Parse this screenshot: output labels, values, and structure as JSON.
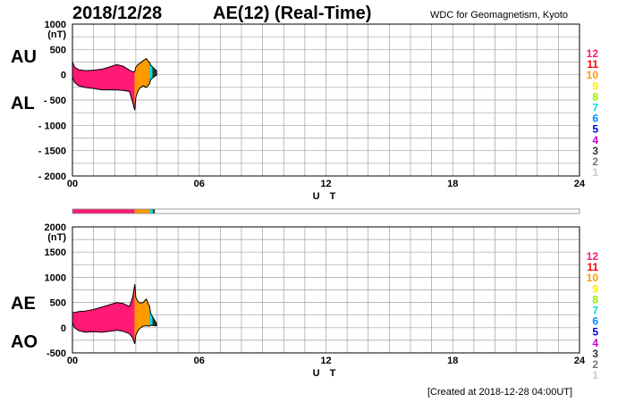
{
  "header": {
    "date": "2018/12/28",
    "title": "AE(12) (Real-Time)",
    "credit": "WDC for Geomagnetism, Kyoto"
  },
  "footer": {
    "created": "[Created at 2018-12-28 04:00UT]"
  },
  "legend": [
    {
      "label": "12",
      "color": "#ff1a75"
    },
    {
      "label": "11",
      "color": "#ff0000"
    },
    {
      "label": "10",
      "color": "#ff9900"
    },
    {
      "label": "9",
      "color": "#ffee00"
    },
    {
      "label": "8",
      "color": "#99ee00"
    },
    {
      "label": "7",
      "color": "#00dddd"
    },
    {
      "label": "6",
      "color": "#0088ff"
    },
    {
      "label": "5",
      "color": "#0000dd"
    },
    {
      "label": "4",
      "color": "#cc00cc"
    },
    {
      "label": "3",
      "color": "#333333"
    },
    {
      "label": "2",
      "color": "#777777"
    },
    {
      "label": "1",
      "color": "#cccccc"
    }
  ],
  "chart_data": [
    {
      "type": "area",
      "upper_label": "AU",
      "lower_label": "AL",
      "ylabel": "(nT)",
      "xlabel": "U T",
      "xlim": [
        0,
        24
      ],
      "ylim": [
        -2000,
        1000
      ],
      "xticks": [
        "00",
        "06",
        "12",
        "18",
        "24"
      ],
      "yticks": [
        "1000",
        "500",
        "0",
        "- 500",
        "- 1000",
        "- 1500",
        "- 2000"
      ],
      "grid": true,
      "x": [
        0,
        0.1,
        0.3,
        0.6,
        1.0,
        1.4,
        1.8,
        2.1,
        2.4,
        2.7,
        2.85,
        2.95,
        3.0,
        3.1,
        3.2,
        3.35,
        3.5,
        3.6,
        3.65,
        3.7,
        3.8,
        3.9,
        4.0
      ],
      "upper": [
        250,
        150,
        100,
        80,
        90,
        110,
        160,
        200,
        170,
        90,
        60,
        60,
        150,
        200,
        230,
        280,
        320,
        260,
        250,
        190,
        150,
        110,
        70
      ],
      "lower": [
        -50,
        -150,
        -220,
        -250,
        -270,
        -300,
        -300,
        -300,
        -310,
        -330,
        -540,
        -700,
        -450,
        -320,
        -260,
        -220,
        -250,
        -200,
        -180,
        -100,
        -60,
        -30,
        0
      ]
    },
    {
      "type": "area",
      "upper_label": "AE",
      "lower_label": "AO",
      "ylabel": "(nT)",
      "xlabel": "U T",
      "xlim": [
        0,
        24
      ],
      "ylim": [
        -500,
        2000
      ],
      "xticks": [
        "00",
        "06",
        "12",
        "18",
        "24"
      ],
      "yticks": [
        "2000",
        "1500",
        "1000",
        "500",
        "0",
        "-500"
      ],
      "grid": true,
      "x": [
        0,
        0.1,
        0.3,
        0.6,
        1.0,
        1.4,
        1.8,
        2.1,
        2.4,
        2.7,
        2.85,
        2.95,
        3.0,
        3.1,
        3.2,
        3.35,
        3.5,
        3.6,
        3.65,
        3.7,
        3.8,
        3.9,
        4.0
      ],
      "upper": [
        300,
        300,
        320,
        330,
        360,
        410,
        460,
        500,
        480,
        420,
        600,
        860,
        600,
        520,
        490,
        500,
        570,
        460,
        430,
        290,
        210,
        140,
        70
      ],
      "lower": [
        100,
        0,
        -60,
        -90,
        -80,
        -90,
        -70,
        -50,
        -70,
        -120,
        -200,
        -320,
        -150,
        -60,
        -10,
        30,
        40,
        30,
        35,
        45,
        45,
        40,
        35
      ]
    }
  ],
  "segments": [
    {
      "from": 0,
      "to": 2.95,
      "color": "#ff1a75"
    },
    {
      "from": 2.95,
      "to": 3.65,
      "color": "#ff9900"
    },
    {
      "from": 3.65,
      "to": 3.8,
      "color": "#00dddd"
    },
    {
      "from": 3.8,
      "to": 3.9,
      "color": "#333333"
    }
  ]
}
